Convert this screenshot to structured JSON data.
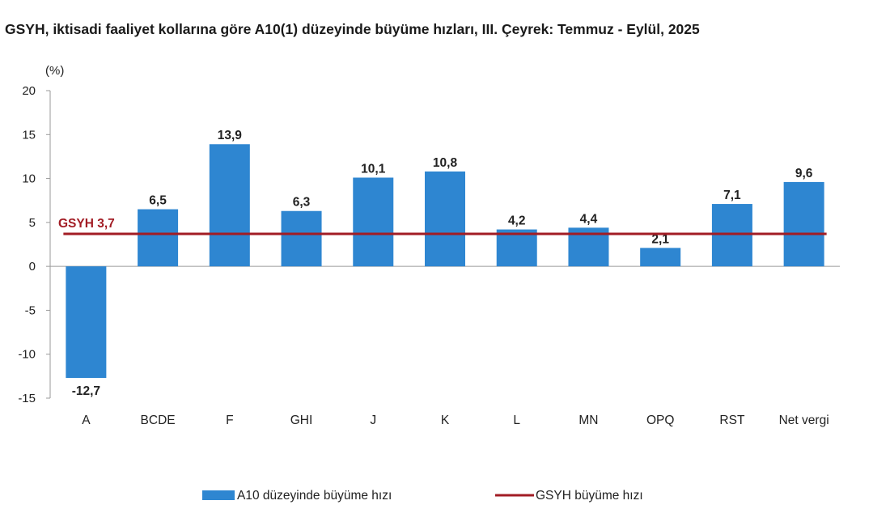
{
  "title": "GSYH, iktisadi faaliyet kollarına göre A10(1) düzeyinde büyüme hızları, III. Çeyrek: Temmuz - Eylül, 2025",
  "chart_data": {
    "type": "bar",
    "title": "GSYH, iktisadi faaliyet kollarına göre A10(1) düzeyinde büyüme hızları, III. Çeyrek: Temmuz - Eylül, 2025",
    "unit_label": "(%)",
    "categories": [
      "A",
      "BCDE",
      "F",
      "GHI",
      "J",
      "K",
      "L",
      "MN",
      "OPQ",
      "RST",
      "Net vergi"
    ],
    "data_labels": [
      "-12,7",
      "6,5",
      "13,9",
      "6,3",
      "10,1",
      "10,8",
      "4,2",
      "4,4",
      "2,1",
      "7,1",
      "9,6"
    ],
    "series": [
      {
        "name": "A10 düzeyinde büyüme hızı",
        "type": "bar",
        "color": "#2e86d1",
        "values": [
          -12.7,
          6.5,
          13.9,
          6.3,
          10.1,
          10.8,
          4.2,
          4.4,
          2.1,
          7.1,
          9.6
        ]
      },
      {
        "name": "GSYH büyüme hızı",
        "type": "line",
        "color": "#a21c24",
        "value": 3.7
      }
    ],
    "reference_label": "GSYH 3,7",
    "ylim": [
      -15,
      20
    ],
    "yticks": [
      20,
      15,
      10,
      5,
      0,
      -5,
      -10,
      -15
    ],
    "grid": false,
    "legend_position": "bottom"
  }
}
